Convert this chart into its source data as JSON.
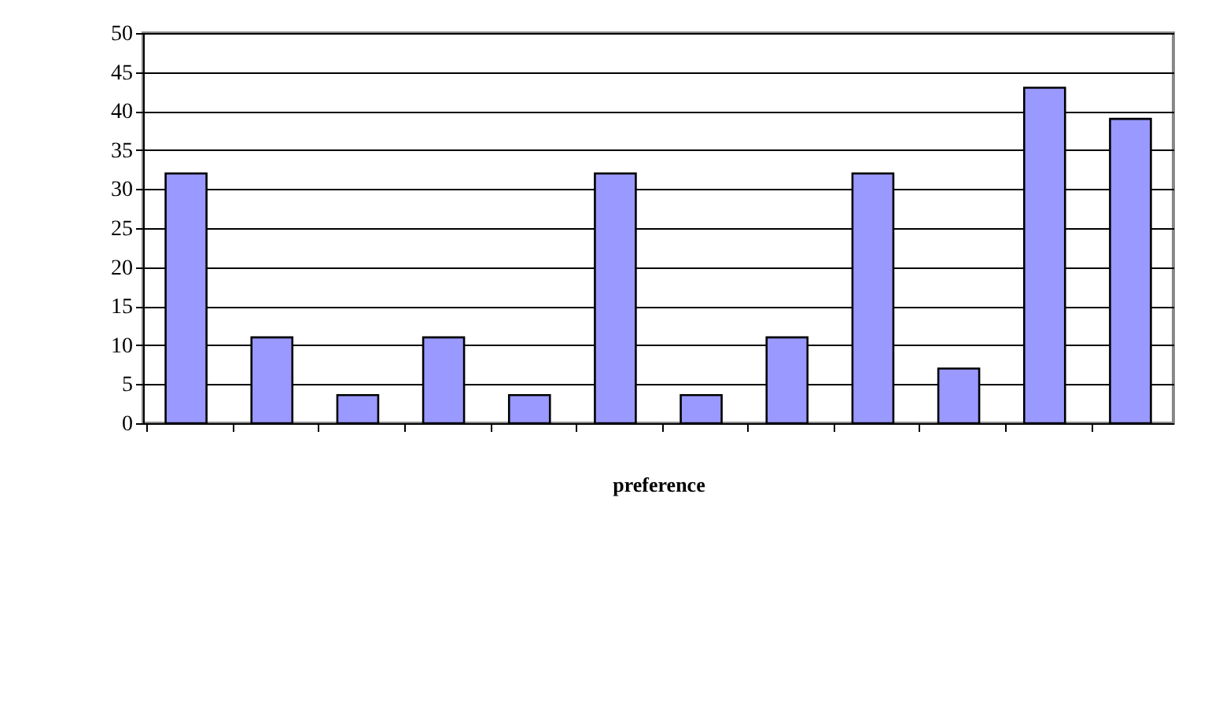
{
  "chart_data": {
    "type": "bar",
    "xlabel": "preference",
    "categories": [
      null,
      null,
      null,
      null,
      null,
      null,
      null,
      null,
      null,
      null,
      null,
      null
    ],
    "values": [
      32,
      11,
      3.6,
      11,
      3.6,
      32,
      3.6,
      11,
      32,
      7,
      43,
      39
    ],
    "color": "#9999ff",
    "ylim": [
      0,
      50
    ],
    "yticks": [
      0,
      5,
      10,
      15,
      20,
      25,
      30,
      35,
      40,
      45,
      50
    ],
    "grid": "y"
  }
}
